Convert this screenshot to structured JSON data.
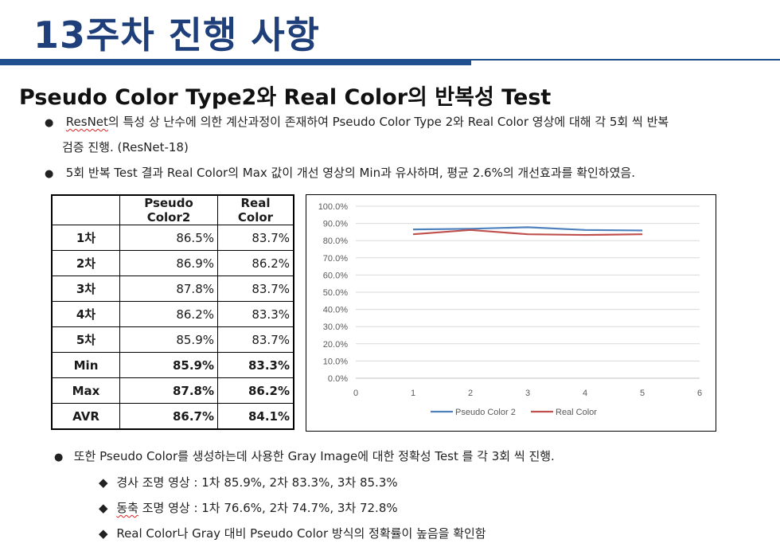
{
  "page": {
    "title": "13주차 진행 사항",
    "subtitle": "Pseudo Color Type2와 Real Color의 반복성 Test"
  },
  "bullets": {
    "b1_resnet": "ResNet",
    "b1_rest": "의 특성 상 난수에 의한 계산과정이 존재하여 Pseudo Color Type 2와 Real Color 영상에 대해 각 5회 씩 반복",
    "b1_line2": "검증 진행. (ResNet-18)",
    "b2": "5회 반복 Test 결과 Real Color의 Max 값이 개선 영상의 Min과 유사하며, 평균 2.6%의 개선효과를 확인하였음.",
    "b3": "또한 Pseudo Color를 생성하는데 사용한 Gray Image에 대한 정확성 Test 를 각 3회 씩 진행.",
    "sub1": "경사 조명 영상 : 1차 85.9%, 2차 83.3%, 3차 85.3%",
    "sub2_word": "동축",
    "sub2_rest": " 조명 영상 : 1차 76.6%, 2차 74.7%, 3차 72.8%",
    "sub3": "Real Color나 Gray 대비 Pseudo Color 방식의 정확률이 높음을 확인함"
  },
  "table": {
    "headers": [
      "",
      "Pseudo Color2",
      "Real Color"
    ],
    "rows": [
      {
        "label": "1차",
        "pc": "86.5%",
        "rc": "83.7%"
      },
      {
        "label": "2차",
        "pc": "86.9%",
        "rc": "86.2%"
      },
      {
        "label": "3차",
        "pc": "87.8%",
        "rc": "83.7%"
      },
      {
        "label": "4차",
        "pc": "86.2%",
        "rc": "83.3%"
      },
      {
        "label": "5차",
        "pc": "85.9%",
        "rc": "83.7%"
      },
      {
        "label": "Min",
        "pc": "85.9%",
        "rc": "83.3%"
      },
      {
        "label": "Max",
        "pc": "87.8%",
        "rc": "86.2%"
      },
      {
        "label": "AVR",
        "pc": "86.7%",
        "rc": "84.1%"
      }
    ]
  },
  "chart_data": {
    "type": "line",
    "title": "",
    "xlabel": "",
    "ylabel": "",
    "xlim": [
      0,
      6
    ],
    "ylim": [
      0,
      100
    ],
    "x_ticks": [
      0,
      1,
      2,
      3,
      4,
      5,
      6
    ],
    "y_ticks": [
      0,
      10,
      20,
      30,
      40,
      50,
      60,
      70,
      80,
      90,
      100
    ],
    "y_tick_format": "percent_1dp",
    "grid": "horizontal",
    "legend": "bottom",
    "series": [
      {
        "name": "Pseudo Color 2",
        "color": "#4f81bd",
        "x": [
          1,
          2,
          3,
          4,
          5
        ],
        "values": [
          86.5,
          86.9,
          87.8,
          86.2,
          85.9
        ]
      },
      {
        "name": "Real Color",
        "color": "#c0504d",
        "x": [
          1,
          2,
          3,
          4,
          5
        ],
        "values": [
          83.7,
          86.2,
          83.7,
          83.3,
          83.7
        ]
      }
    ]
  }
}
